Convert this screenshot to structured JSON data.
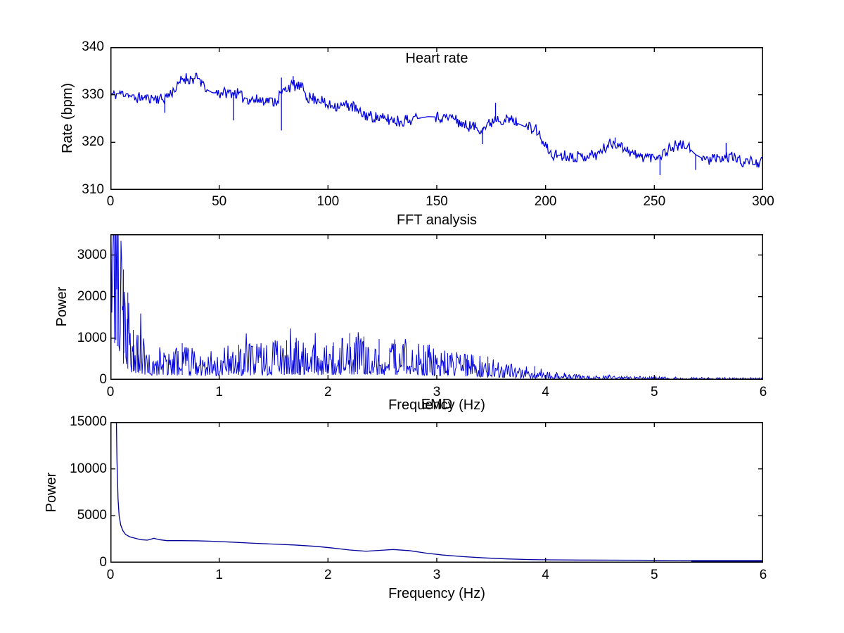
{
  "figure": {
    "background": "#ffffff",
    "text_color": "#000000"
  },
  "chart_data": [
    {
      "id": "heart_rate",
      "type": "line",
      "title": "Heart rate",
      "xlabel": "",
      "ylabel": "Rate (bpm)",
      "xlim": [
        0,
        300
      ],
      "ylim": [
        310,
        340
      ],
      "xticks": [
        0,
        50,
        100,
        150,
        200,
        250,
        300
      ],
      "yticks": [
        310,
        320,
        330,
        340
      ],
      "line_color": "#0000e0",
      "grid": false,
      "legend": null,
      "series_mode": "noisy_steps",
      "baseline": [
        [
          0,
          330.2
        ],
        [
          8,
          330.2
        ],
        [
          10,
          329.4
        ],
        [
          20,
          329.4
        ],
        [
          24,
          329.0
        ],
        [
          27,
          330.2
        ],
        [
          31,
          331.6
        ],
        [
          33,
          333.4
        ],
        [
          41,
          333.4
        ],
        [
          43,
          331.4
        ],
        [
          47,
          330.4
        ],
        [
          58,
          330.4
        ],
        [
          61,
          329.4
        ],
        [
          65,
          329.0
        ],
        [
          76,
          328.7
        ],
        [
          80,
          331.0
        ],
        [
          84,
          332.0
        ],
        [
          88,
          331.4
        ],
        [
          91,
          329.4
        ],
        [
          96,
          329.0
        ],
        [
          100,
          327.7
        ],
        [
          111,
          327.7
        ],
        [
          114,
          326.2
        ],
        [
          120,
          325.4
        ],
        [
          133,
          324.4
        ],
        [
          140,
          324.9
        ],
        [
          146,
          325.4
        ],
        [
          157,
          325.2
        ],
        [
          162,
          323.6
        ],
        [
          170,
          322.9
        ],
        [
          173,
          323.4
        ],
        [
          177,
          325.0
        ],
        [
          184,
          324.6
        ],
        [
          190,
          323.4
        ],
        [
          196,
          322.6
        ],
        [
          199,
          319.5
        ],
        [
          203,
          317.4
        ],
        [
          215,
          317.0
        ],
        [
          224,
          317.4
        ],
        [
          229,
          319.6
        ],
        [
          233,
          319.9
        ],
        [
          238,
          318.4
        ],
        [
          242,
          317.0
        ],
        [
          251,
          316.9
        ],
        [
          256,
          318.4
        ],
        [
          260,
          319.4
        ],
        [
          265,
          319.2
        ],
        [
          269,
          317.4
        ],
        [
          273,
          316.4
        ],
        [
          280,
          316.4
        ],
        [
          285,
          317.0
        ],
        [
          290,
          316.0
        ],
        [
          296,
          315.9
        ],
        [
          300,
          315.7
        ]
      ],
      "noise": {
        "amp": 1.1,
        "quantum": 0.55,
        "dt": 0.4,
        "seed": 11
      },
      "quiet_intervals": [
        [
          44,
          48
        ],
        [
          141,
          149
        ],
        [
          187,
          191
        ],
        [
          267,
          272
        ]
      ],
      "spikes": [
        [
          25,
          326.2,
          null
        ],
        [
          56.5,
          324.6,
          null
        ],
        [
          78.6,
          322.5,
          333.6
        ],
        [
          84,
          null,
          333.9
        ],
        [
          171,
          319.6,
          null
        ],
        [
          177,
          null,
          328.3
        ],
        [
          232,
          null,
          321.0
        ],
        [
          252.6,
          313.1,
          null
        ],
        [
          269,
          314.2,
          null
        ],
        [
          283,
          null,
          319.9
        ]
      ]
    },
    {
      "id": "fft_analysis",
      "type": "line",
      "title": "FFT analysis",
      "xlabel": "Frequency (Hz)",
      "ylabel": "Power",
      "xlim": [
        0,
        6
      ],
      "ylim": [
        0,
        3500
      ],
      "xticks": [
        0,
        1,
        2,
        3,
        4,
        5,
        6
      ],
      "yticks": [
        0,
        1000,
        2000,
        3000
      ],
      "line_color": "#0000e0",
      "grid": false,
      "legend": null,
      "series_mode": "noisy_spectrum",
      "envelope": [
        [
          0.0,
          3000
        ],
        [
          0.05,
          3200
        ],
        [
          0.08,
          2200
        ],
        [
          0.1,
          1600
        ],
        [
          0.13,
          1150
        ],
        [
          0.16,
          900
        ],
        [
          0.2,
          700
        ],
        [
          0.25,
          560
        ],
        [
          0.3,
          480
        ],
        [
          0.4,
          430
        ],
        [
          0.5,
          400
        ],
        [
          0.7,
          390
        ],
        [
          0.9,
          385
        ],
        [
          1.1,
          395
        ],
        [
          1.3,
          415
        ],
        [
          1.5,
          445
        ],
        [
          1.65,
          480
        ],
        [
          1.8,
          455
        ],
        [
          1.95,
          445
        ],
        [
          2.1,
          470
        ],
        [
          2.25,
          495
        ],
        [
          2.4,
          455
        ],
        [
          2.55,
          410
        ],
        [
          2.7,
          425
        ],
        [
          2.85,
          430
        ],
        [
          3.0,
          395
        ],
        [
          3.15,
          345
        ],
        [
          3.3,
          300
        ],
        [
          3.45,
          260
        ],
        [
          3.6,
          215
        ],
        [
          3.75,
          170
        ],
        [
          3.9,
          130
        ],
        [
          4.05,
          100
        ],
        [
          4.2,
          78
        ],
        [
          4.4,
          60
        ],
        [
          4.7,
          45
        ],
        [
          5.0,
          36
        ],
        [
          5.5,
          28
        ],
        [
          6.0,
          22
        ]
      ],
      "noise": {
        "seed": 23,
        "df": 0.00647,
        "min": 12,
        "clip": 3500
      },
      "notable_peaks": [
        [
          0.05,
          3500
        ],
        [
          0.065,
          3500
        ],
        [
          0.12,
          2650
        ],
        [
          0.16,
          2100
        ],
        [
          0.21,
          1200
        ],
        [
          0.26,
          1070
        ],
        [
          0.66,
          880
        ],
        [
          1.18,
          840
        ],
        [
          1.62,
          950
        ],
        [
          1.7,
          900
        ],
        [
          2.05,
          900
        ],
        [
          2.2,
          1120
        ],
        [
          2.33,
          1040
        ],
        [
          2.47,
          980
        ],
        [
          2.62,
          860
        ],
        [
          2.88,
          830
        ],
        [
          3.1,
          640
        ],
        [
          3.28,
          600
        ],
        [
          3.47,
          560
        ],
        [
          3.9,
          330
        ]
      ]
    },
    {
      "id": "emd",
      "type": "line",
      "title": "EMD",
      "xlabel": "Frequency (Hz)",
      "ylabel": "Power",
      "xlim": [
        0,
        6
      ],
      "ylim": [
        0,
        15000
      ],
      "xticks": [
        0,
        1,
        2,
        3,
        4,
        5,
        6
      ],
      "yticks": [
        0,
        5000,
        10000,
        15000
      ],
      "line_color": "#000099",
      "grid": false,
      "legend": null,
      "series_mode": "plain",
      "points": [
        [
          0.04,
          15000
        ],
        [
          0.055,
          15000
        ],
        [
          0.06,
          11000
        ],
        [
          0.07,
          6800
        ],
        [
          0.08,
          5000
        ],
        [
          0.095,
          4000
        ],
        [
          0.115,
          3400
        ],
        [
          0.14,
          3000
        ],
        [
          0.18,
          2750
        ],
        [
          0.23,
          2600
        ],
        [
          0.28,
          2450
        ],
        [
          0.34,
          2400
        ],
        [
          0.4,
          2600
        ],
        [
          0.45,
          2450
        ],
        [
          0.52,
          2350
        ],
        [
          0.65,
          2350
        ],
        [
          0.8,
          2330
        ],
        [
          0.95,
          2280
        ],
        [
          1.1,
          2200
        ],
        [
          1.3,
          2080
        ],
        [
          1.5,
          1980
        ],
        [
          1.7,
          1880
        ],
        [
          1.9,
          1730
        ],
        [
          2.05,
          1550
        ],
        [
          2.2,
          1350
        ],
        [
          2.35,
          1220
        ],
        [
          2.5,
          1330
        ],
        [
          2.6,
          1400
        ],
        [
          2.75,
          1280
        ],
        [
          2.9,
          1020
        ],
        [
          3.05,
          820
        ],
        [
          3.25,
          640
        ],
        [
          3.45,
          500
        ],
        [
          3.65,
          400
        ],
        [
          3.85,
          330
        ],
        [
          4.05,
          300
        ],
        [
          4.3,
          280
        ],
        [
          4.55,
          270
        ],
        [
          4.8,
          260
        ],
        [
          5.0,
          250
        ],
        [
          5.2,
          235
        ],
        [
          5.34,
          210
        ]
      ],
      "tail_band": {
        "x0": 5.34,
        "x1": 6.0,
        "value": 80,
        "thickness_px": 5
      }
    }
  ]
}
